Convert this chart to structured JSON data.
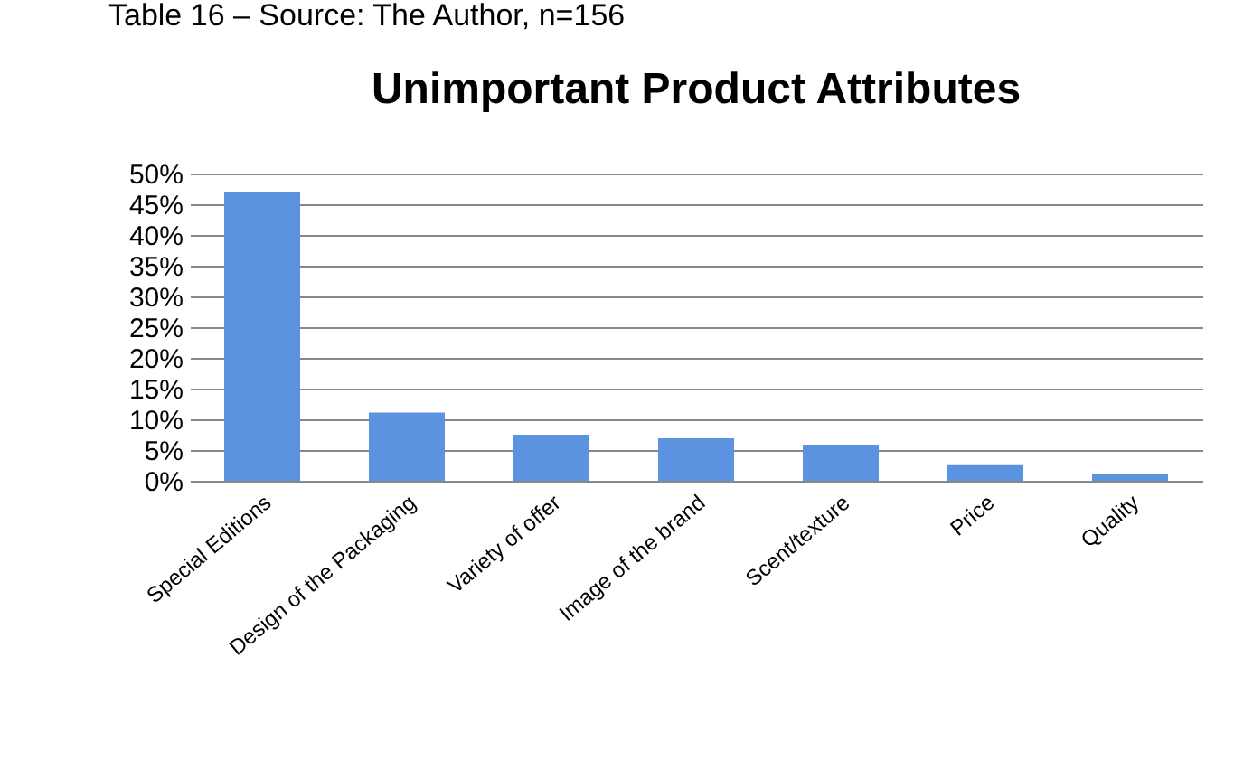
{
  "chart_data": {
    "type": "bar",
    "title": "Unimportant Product Attributes",
    "annotations": [
      "Table 16 – Source: The Author, n=156"
    ],
    "categories": [
      "Special Editions",
      "Design of the Packaging",
      "Variety of offer",
      "Image of the brand",
      "Scent/texture",
      "Price",
      "Quality"
    ],
    "values": [
      47.0,
      11.1,
      7.5,
      6.9,
      5.9,
      2.7,
      1.1
    ],
    "color": "#5b93e0",
    "ylim": [
      0,
      50
    ],
    "yticks": [
      {
        "value": 0,
        "label": "0%"
      },
      {
        "value": 5,
        "label": "5%"
      },
      {
        "value": 10,
        "label": "10%"
      },
      {
        "value": 15,
        "label": "15%"
      },
      {
        "value": 20,
        "label": "20%"
      },
      {
        "value": 25,
        "label": "25%"
      },
      {
        "value": 30,
        "label": "30%"
      },
      {
        "value": 35,
        "label": "35%"
      },
      {
        "value": 40,
        "label": "40%"
      },
      {
        "value": 45,
        "label": "45%"
      },
      {
        "value": 50,
        "label": "50%"
      }
    ],
    "grid": "y"
  }
}
